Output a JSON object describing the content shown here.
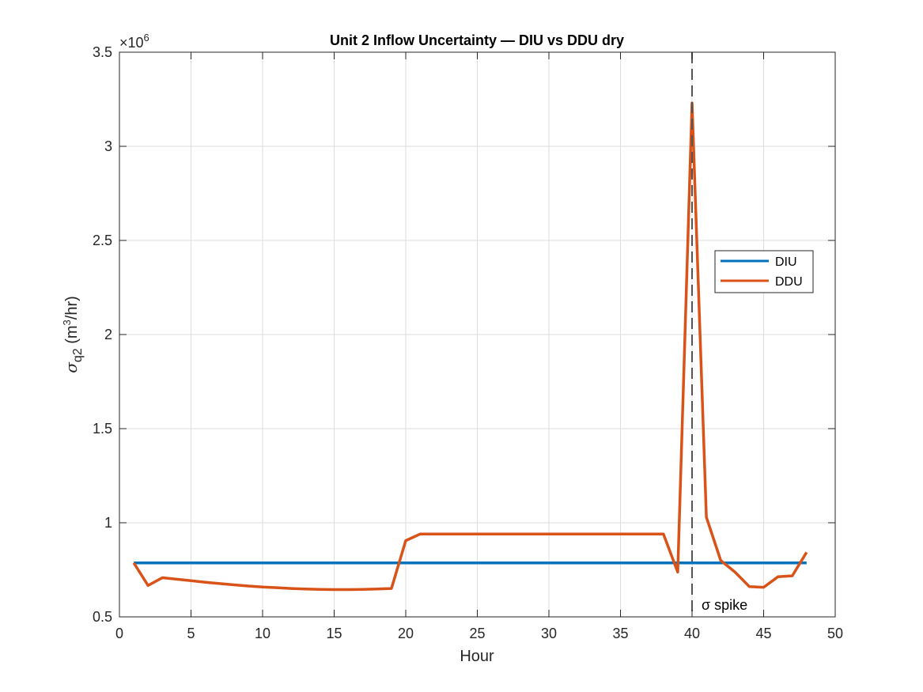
{
  "chart_data": {
    "type": "line",
    "title": "Unit 2 Inflow Uncertainty — DIU vs DDU dry",
    "xlabel": "Hour",
    "ylabel": {
      "sigma": "σ",
      "subscript": "q2",
      "unit_open": "(m",
      "unit_sup": "3",
      "unit_close": "/hr)"
    },
    "exponent_label": {
      "base": "×10",
      "power": "6"
    },
    "xlim": [
      0,
      50
    ],
    "ylim": [
      500000,
      3500000
    ],
    "xticks": [
      0,
      5,
      10,
      15,
      20,
      25,
      30,
      35,
      40,
      45,
      50
    ],
    "xtick_labels": [
      "0",
      "5",
      "10",
      "15",
      "20",
      "25",
      "30",
      "35",
      "40",
      "45",
      "50"
    ],
    "yticks": [
      500000,
      1000000,
      1500000,
      2000000,
      2500000,
      3000000,
      3500000
    ],
    "ytick_labels": [
      "0.5",
      "1",
      "1.5",
      "2",
      "2.5",
      "3",
      "3.5"
    ],
    "grid": true,
    "legend_position": "right",
    "series": [
      {
        "name": "DIU",
        "color": "#0072bd",
        "x": [
          1,
          48
        ],
        "values": [
          787000,
          787000
        ]
      },
      {
        "name": "DDU",
        "color": "#d95319",
        "x": [
          1,
          2,
          3,
          4,
          5,
          6,
          7,
          8,
          9,
          10,
          11,
          12,
          13,
          14,
          15,
          16,
          17,
          18,
          19,
          20,
          21,
          22,
          23,
          24,
          25,
          26,
          27,
          28,
          29,
          30,
          31,
          32,
          33,
          34,
          35,
          36,
          37,
          38,
          39,
          40,
          41,
          42,
          43,
          44,
          45,
          46,
          47,
          48
        ],
        "values": [
          787000,
          667000,
          708000,
          700000,
          692000,
          684000,
          677000,
          670000,
          664000,
          659000,
          655000,
          651000,
          648000,
          646000,
          645000,
          645000,
          646000,
          648000,
          651000,
          905000,
          940000,
          940000,
          940000,
          940000,
          940000,
          940000,
          940000,
          940000,
          940000,
          940000,
          940000,
          940000,
          940000,
          940000,
          940000,
          940000,
          940000,
          940000,
          738000,
          3230000,
          1030000,
          800000,
          738000,
          661000,
          657000,
          713000,
          718000,
          843000
        ]
      }
    ],
    "annotation": {
      "type": "vertical-line",
      "x": 40,
      "color": "#555555",
      "label": "σ spike"
    }
  }
}
